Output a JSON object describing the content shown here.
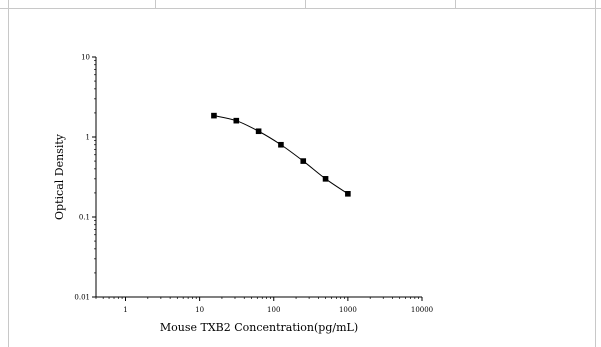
{
  "chart_data": {
    "type": "line",
    "title": "",
    "xlabel": "Mouse TXB2 Concentration(pg/mL)",
    "ylabel": "Optical Density",
    "x_scale": "log",
    "y_scale": "log",
    "xlim": [
      0.4,
      10000
    ],
    "ylim": [
      0.01,
      10
    ],
    "x_ticks": [
      "1",
      "10",
      "100",
      "1000",
      "10000"
    ],
    "y_ticks": [
      "10",
      "1",
      "0.1",
      "0.01"
    ],
    "grid": false,
    "legend": "none",
    "series": [
      {
        "x": [
          15.6,
          31.25,
          62.5,
          125,
          250,
          500,
          1000
        ],
        "y": [
          1.85,
          1.6,
          1.18,
          0.8,
          0.5,
          0.3,
          0.195
        ]
      }
    ],
    "colors": {
      "line": "#000000",
      "marker": "#000000",
      "border": "#c8c8c8"
    }
  }
}
